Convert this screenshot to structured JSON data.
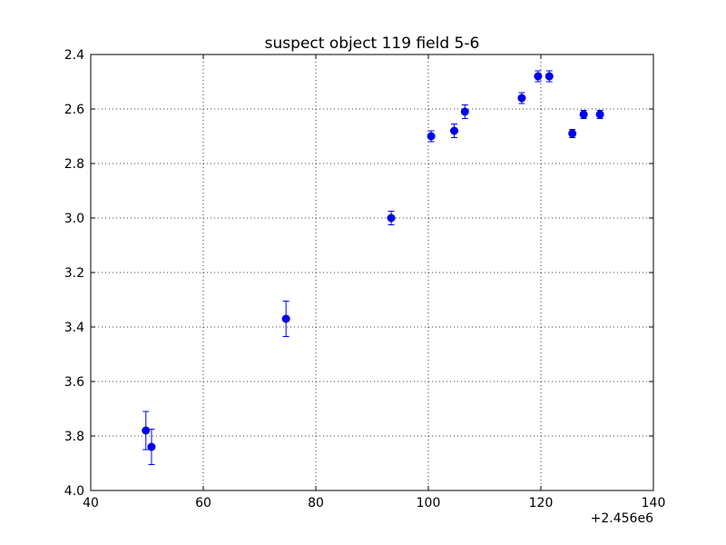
{
  "chart_data": {
    "type": "scatter",
    "title": "suspect object 119 field 5-6",
    "xlabel": "",
    "ylabel": "",
    "x_offset_label": "+2.456e6",
    "xlim": [
      40,
      140
    ],
    "ylim": [
      2.4,
      4.0
    ],
    "y_inverted": true,
    "grid": true,
    "x_ticks": [
      40,
      60,
      80,
      100,
      120,
      140
    ],
    "x_tick_labels": [
      "40",
      "60",
      "80",
      "100",
      "120",
      "140"
    ],
    "y_ticks": [
      2.4,
      2.6,
      2.8,
      3.0,
      3.2,
      3.4,
      3.6,
      3.8,
      4.0
    ],
    "y_tick_labels": [
      "2.4",
      "2.6",
      "2.8",
      "3.0",
      "3.2",
      "3.4",
      "3.6",
      "3.8",
      "4.0"
    ],
    "series": [
      {
        "color": "#0000ff",
        "x": [
          49.8,
          50.8,
          74.7,
          93.4,
          100.5,
          104.6,
          106.5,
          116.6,
          119.5,
          121.5,
          125.6,
          127.6,
          130.5
        ],
        "y": [
          3.78,
          3.84,
          3.37,
          3.0,
          2.7,
          2.68,
          2.61,
          2.56,
          2.48,
          2.48,
          2.69,
          2.62,
          2.62
        ],
        "err": [
          0.07,
          0.065,
          0.065,
          0.025,
          0.02,
          0.025,
          0.025,
          0.02,
          0.02,
          0.02,
          0.015,
          0.015,
          0.015
        ]
      }
    ]
  }
}
